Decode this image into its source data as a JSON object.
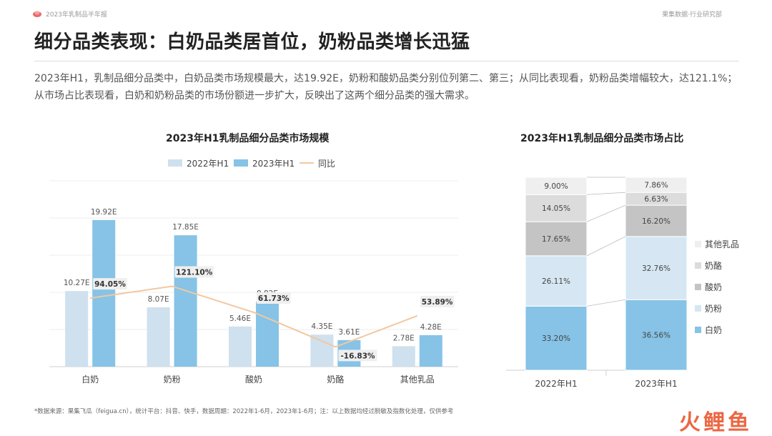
{
  "header": {
    "report_name": "2023年乳制品半年报",
    "source_tag": "果集数据·行业研究部"
  },
  "headline": "细分品类表现：白奶品类居首位，奶粉品类增长迅猛",
  "summary": "2023年H1，乳制品细分品类中，白奶品类市场规模最大，达19.92E，奶粉和酸奶品类分别位列第二、第三；从同比表现看，奶粉品类增幅较大，达121.1%；从市场占比表现看，白奶和奶粉品类的市场份额进一步扩大，反映出了这两个细分品类的强大需求。",
  "colors": {
    "bar2022": "#cfe0ee",
    "bar2023": "#86c3e6",
    "yoy": "#f2c8a0",
    "label_bg": "#efefef"
  },
  "chart_data": [
    {
      "type": "bar",
      "title": "2023年H1乳制品细分品类市场规模",
      "categories": [
        "白奶",
        "奶粉",
        "酸奶",
        "奶酪",
        "其他乳品"
      ],
      "series": [
        {
          "name": "2022年H1",
          "values": [
            10.27,
            8.07,
            5.46,
            4.35,
            2.78
          ],
          "labels": [
            "10.27E",
            "8.07E",
            "5.46E",
            "4.35E",
            "2.78E"
          ]
        },
        {
          "name": "2023年H1",
          "values": [
            19.92,
            17.85,
            8.82,
            3.61,
            4.28
          ],
          "labels": [
            "19.92E",
            "17.85E",
            "8.82E",
            "3.61E",
            "4.28E"
          ]
        }
      ],
      "line": {
        "name": "同比",
        "values": [
          94.05,
          121.1,
          61.73,
          -16.83,
          53.89
        ],
        "labels": [
          "94.05%",
          "121.10%",
          "61.73%",
          "-16.83%",
          "53.89%"
        ]
      },
      "legend_position": "top",
      "grid": true
    },
    {
      "type": "bar",
      "stacked": true,
      "percent": true,
      "title": "2023年H1乳制品细分品类市场占比",
      "categories": [
        "2022年H1",
        "2023年H1"
      ],
      "series": [
        {
          "name": "白奶",
          "color": "#86c3e6",
          "values": [
            33.2,
            36.56
          ],
          "labels": [
            "33.20%",
            "36.56%"
          ]
        },
        {
          "name": "奶粉",
          "color": "#d6e7f3",
          "values": [
            26.11,
            32.76
          ],
          "labels": [
            "26.11%",
            "32.76%"
          ]
        },
        {
          "name": "酸奶",
          "color": "#c4c4c4",
          "values": [
            17.65,
            16.2
          ],
          "labels": [
            "17.65%",
            "16.20%"
          ]
        },
        {
          "name": "奶酪",
          "color": "#dcdcdc",
          "values": [
            14.05,
            6.63
          ],
          "labels": [
            "14.05%",
            "6.63%"
          ]
        },
        {
          "name": "其他乳品",
          "color": "#efefef",
          "values": [
            9.0,
            7.86
          ],
          "labels": [
            "9.00%",
            "7.86%"
          ]
        }
      ],
      "legend_position": "right"
    }
  ],
  "footnote": "*数据来源：果集飞瓜（feigua.cn），统计平台：抖音、快手，数据周期：2022年1-6月，2023年1-6月；注：以上数据均经过脱敏及指数化处理，仅供参考",
  "watermark": "火鲤鱼"
}
